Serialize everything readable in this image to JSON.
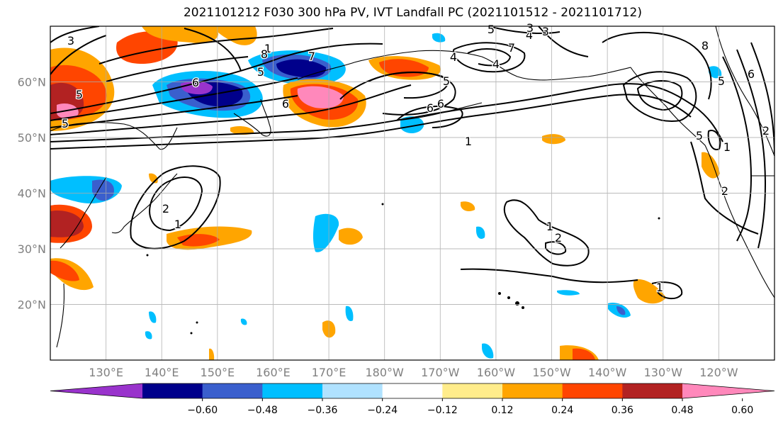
{
  "title": "2021101212 F030 300 hPa PV, IVT Landfall PC (2021101512 - 2021101712)",
  "map": {
    "projection": "plate-carree",
    "lon_range": [
      120,
      250
    ],
    "lat_range": [
      10,
      70
    ],
    "lat_labels": [
      {
        "lat": 60,
        "label": "60°N"
      },
      {
        "lat": 50,
        "label": "50°N"
      },
      {
        "lat": 40,
        "label": "40°N"
      },
      {
        "lat": 30,
        "label": "30°N"
      },
      {
        "lat": 20,
        "label": "20°N"
      }
    ],
    "lon_labels": [
      {
        "lon": 130,
        "label": "130°E"
      },
      {
        "lon": 140,
        "label": "140°E"
      },
      {
        "lon": 150,
        "label": "150°E"
      },
      {
        "lon": 160,
        "label": "160°E"
      },
      {
        "lon": 170,
        "label": "170°E"
      },
      {
        "lon": 180,
        "label": "180°W"
      },
      {
        "lon": 190,
        "label": "170°W"
      },
      {
        "lon": 200,
        "label": "160°W"
      },
      {
        "lon": 210,
        "label": "150°W"
      },
      {
        "lon": 220,
        "label": "140°W"
      },
      {
        "lon": 230,
        "label": "130°W"
      },
      {
        "lon": 240,
        "label": "120°W"
      }
    ],
    "grid": true,
    "contour_labels": [
      "3",
      "5",
      "1",
      "7",
      "5",
      "6",
      "4",
      "5",
      "8",
      "6",
      "4",
      "3",
      "5",
      "6",
      "6",
      "5",
      "7",
      "8",
      "4",
      "3",
      "5",
      "6",
      "1",
      "5",
      "1",
      "2",
      "2",
      "1",
      "2",
      "1",
      "1",
      "2"
    ]
  },
  "colorbar": {
    "ticks": [
      "−0.60",
      "−0.48",
      "−0.36",
      "−0.24",
      "−0.12",
      "0.12",
      "0.24",
      "0.36",
      "0.48",
      "0.60"
    ],
    "colors": [
      "#9933cc",
      "#00008b",
      "#3a5fcd",
      "#00bfff",
      "#b0e2ff",
      "#ffffff",
      "#ffec8b",
      "#ffa500",
      "#ff4500",
      "#b22222",
      "#ff88bb"
    ],
    "extend": "both"
  }
}
